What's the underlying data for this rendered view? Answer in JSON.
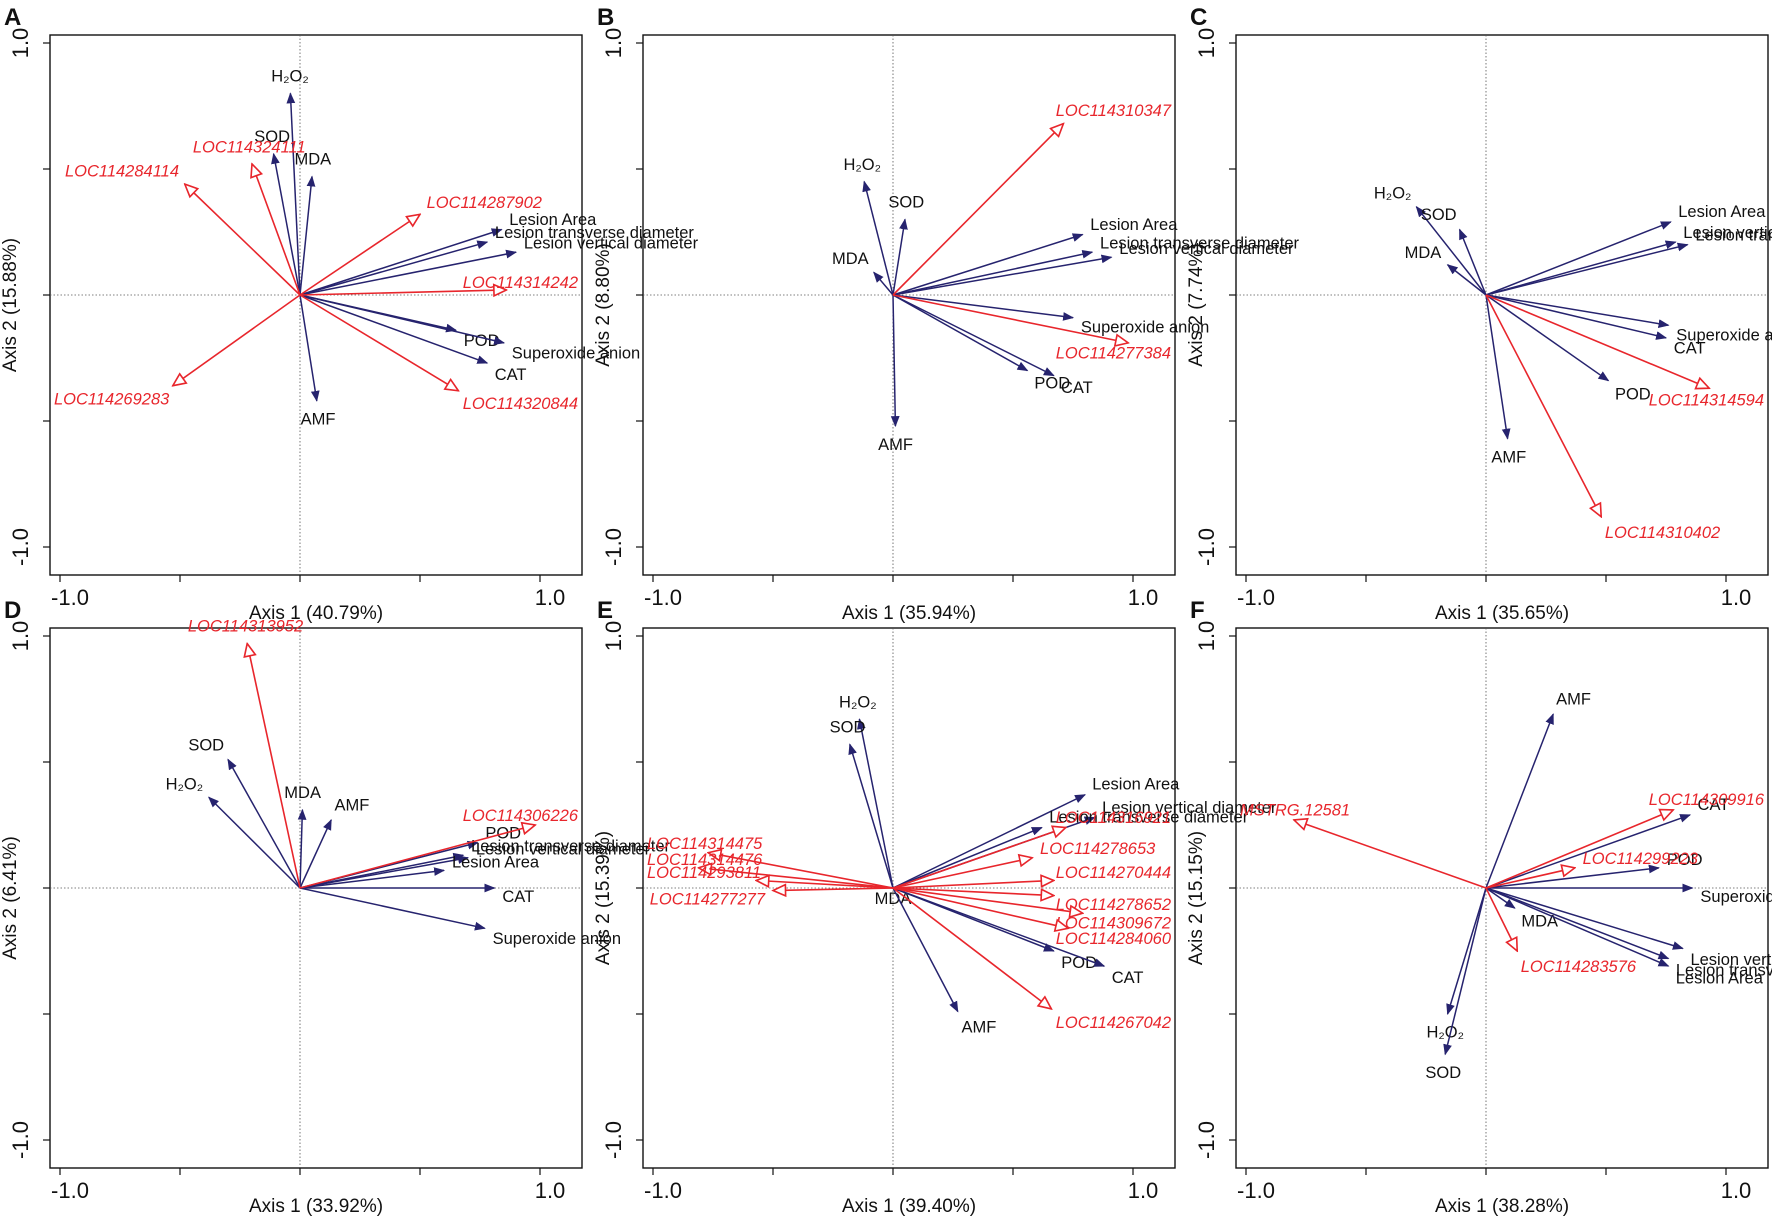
{
  "chart_data": [
    {
      "type": "scatter",
      "panel": "A",
      "xlabel": "Axis 1 (40.79%)",
      "ylabel": "Axis 2 (15.88%)",
      "xlim": [
        -1.0,
        1.0
      ],
      "ylim": [
        -1.0,
        1.0
      ],
      "x_tick_labels": [
        "-1.0",
        "1.0"
      ],
      "y_tick_labels": [
        "1.0",
        "-1.0"
      ],
      "variables": [
        {
          "name": "H₂O₂",
          "x": -0.04,
          "y": 0.8
        },
        {
          "name": "SOD",
          "x": -0.11,
          "y": 0.56
        },
        {
          "name": "MDA",
          "x": 0.05,
          "y": 0.47
        },
        {
          "name": "Lesion Area",
          "x": 0.84,
          "y": 0.26
        },
        {
          "name": "Lesion transverse diameter",
          "x": 0.78,
          "y": 0.21
        },
        {
          "name": "Lesion vertical diameter",
          "x": 0.9,
          "y": 0.17
        },
        {
          "name": "POD",
          "x": 0.65,
          "y": -0.14
        },
        {
          "name": "Superoxide anion",
          "x": 0.85,
          "y": -0.19
        },
        {
          "name": "CAT",
          "x": 0.78,
          "y": -0.27
        },
        {
          "name": "AMF",
          "x": 0.07,
          "y": -0.42
        }
      ],
      "genes": [
        {
          "name": "LOC114324111",
          "x": -0.2,
          "y": 0.52
        },
        {
          "name": "LOC114284114",
          "x": -0.48,
          "y": 0.44
        },
        {
          "name": "LOC114287902",
          "x": 0.5,
          "y": 0.32
        },
        {
          "name": "LOC114314242",
          "x": 0.86,
          "y": 0.02
        },
        {
          "name": "LOC114269283",
          "x": -0.53,
          "y": -0.36
        },
        {
          "name": "LOC114320844",
          "x": 0.66,
          "y": -0.38
        }
      ]
    },
    {
      "type": "scatter",
      "panel": "B",
      "xlabel": "Axis 1 (35.94%)",
      "ylabel": "Axis 2 (8.80%)",
      "xlim": [
        -1.0,
        1.0
      ],
      "ylim": [
        -1.0,
        1.0
      ],
      "x_tick_labels": [
        "-1.0",
        "1.0"
      ],
      "y_tick_labels": [
        "1.0",
        "-1.0"
      ],
      "variables": [
        {
          "name": "H₂O₂",
          "x": -0.12,
          "y": 0.45
        },
        {
          "name": "SOD",
          "x": 0.05,
          "y": 0.3
        },
        {
          "name": "MDA",
          "x": -0.08,
          "y": 0.09
        },
        {
          "name": "Lesion Area",
          "x": 0.79,
          "y": 0.24
        },
        {
          "name": "Lesion transverse diameter",
          "x": 0.83,
          "y": 0.17
        },
        {
          "name": "Lesion vertical diameter",
          "x": 0.91,
          "y": 0.15
        },
        {
          "name": "Superoxide anion",
          "x": 0.75,
          "y": -0.09
        },
        {
          "name": "POD",
          "x": 0.56,
          "y": -0.3
        },
        {
          "name": "CAT",
          "x": 0.67,
          "y": -0.32
        },
        {
          "name": "AMF",
          "x": 0.01,
          "y": -0.52
        }
      ],
      "genes": [
        {
          "name": "LOC114310347",
          "x": 0.71,
          "y": 0.68
        },
        {
          "name": "LOC114277384",
          "x": 0.98,
          "y": -0.19
        }
      ]
    },
    {
      "type": "scatter",
      "panel": "C",
      "xlabel": "Axis 1 (35.65%)",
      "ylabel": "Axis 2 (7.74%)",
      "xlim": [
        -1.0,
        1.0
      ],
      "ylim": [
        -1.0,
        1.0
      ],
      "x_tick_labels": [
        "-1.0",
        "1.0"
      ],
      "y_tick_labels": [
        "1.0",
        "-1.0"
      ],
      "variables": [
        {
          "name": "H₂O₂",
          "x": -0.29,
          "y": 0.35
        },
        {
          "name": "SOD",
          "x": -0.11,
          "y": 0.26
        },
        {
          "name": "MDA",
          "x": -0.16,
          "y": 0.12
        },
        {
          "name": "Lesion Area",
          "x": 0.77,
          "y": 0.29
        },
        {
          "name": "Lesion vertical diameter",
          "x": 0.79,
          "y": 0.21
        },
        {
          "name": "Lesion transverse diameter",
          "x": 0.84,
          "y": 0.2
        },
        {
          "name": "Superoxide anion",
          "x": 0.76,
          "y": -0.12
        },
        {
          "name": "CAT",
          "x": 0.75,
          "y": -0.17
        },
        {
          "name": "POD",
          "x": 0.51,
          "y": -0.34
        },
        {
          "name": "AMF",
          "x": 0.09,
          "y": -0.57
        }
      ],
      "genes": [
        {
          "name": "LOC114314594",
          "x": 0.93,
          "y": -0.37
        },
        {
          "name": "LOC114310402",
          "x": 0.48,
          "y": -0.88
        }
      ]
    },
    {
      "type": "scatter",
      "panel": "D",
      "xlabel": "Axis 1 (33.92%)",
      "ylabel": "Axis 2 (6.41%)",
      "xlim": [
        -1.0,
        1.0
      ],
      "ylim": [
        -1.0,
        1.0
      ],
      "x_tick_labels": [
        "-1.0",
        "1.0"
      ],
      "y_tick_labels": [
        "1.0",
        "-1.0"
      ],
      "variables": [
        {
          "name": "SOD",
          "x": -0.3,
          "y": 0.51
        },
        {
          "name": "H₂O₂",
          "x": -0.38,
          "y": 0.36
        },
        {
          "name": "MDA",
          "x": 0.01,
          "y": 0.31
        },
        {
          "name": "AMF",
          "x": 0.13,
          "y": 0.27
        },
        {
          "name": "POD",
          "x": 0.74,
          "y": 0.18
        },
        {
          "name": "Lesion transverse diameter",
          "x": 0.68,
          "y": 0.13
        },
        {
          "name": "Lesion vertical diameter",
          "x": 0.7,
          "y": 0.12
        },
        {
          "name": "Lesion Area",
          "x": 0.6,
          "y": 0.07
        },
        {
          "name": "CAT",
          "x": 0.81,
          "y": 0.0
        },
        {
          "name": "Superoxide anion",
          "x": 0.77,
          "y": -0.16
        }
      ],
      "genes": [
        {
          "name": "LOC114313952",
          "x": -0.22,
          "y": 0.97
        },
        {
          "name": "LOC114306226",
          "x": 0.98,
          "y": 0.25
        }
      ]
    },
    {
      "type": "scatter",
      "panel": "E",
      "xlabel": "Axis 1 (39.40%)",
      "ylabel": "Axis 2 (15.39%)",
      "xlim": [
        -1.0,
        1.0
      ],
      "ylim": [
        -1.0,
        1.0
      ],
      "x_tick_labels": [
        "-1.0",
        "1.0"
      ],
      "y_tick_labels": [
        "1.0",
        "-1.0"
      ],
      "variables": [
        {
          "name": "H₂O₂",
          "x": -0.14,
          "y": 0.67
        },
        {
          "name": "SOD",
          "x": -0.18,
          "y": 0.57
        },
        {
          "name": "MDA",
          "x": 0.0,
          "y": 0.0
        },
        {
          "name": "Lesion Area",
          "x": 0.8,
          "y": 0.37
        },
        {
          "name": "Lesion vertical diameter",
          "x": 0.84,
          "y": 0.28
        },
        {
          "name": "Lesion transverse diameter",
          "x": 0.62,
          "y": 0.24
        },
        {
          "name": "POD",
          "x": 0.67,
          "y": -0.25
        },
        {
          "name": "CAT",
          "x": 0.88,
          "y": -0.31
        },
        {
          "name": "AMF",
          "x": 0.27,
          "y": -0.49
        }
      ],
      "genes": [
        {
          "name": "LOC114316921",
          "x": 0.72,
          "y": 0.24
        },
        {
          "name": "LOC114278653",
          "x": 0.58,
          "y": 0.12
        },
        {
          "name": "LOC114270444",
          "x": 0.67,
          "y": 0.03
        },
        {
          "name": "LOC114278652",
          "x": 0.67,
          "y": -0.03
        },
        {
          "name": "LOC114309672",
          "x": 0.79,
          "y": -0.1
        },
        {
          "name": "LOC114284060",
          "x": 0.73,
          "y": -0.16
        },
        {
          "name": "LOC114267042",
          "x": 0.66,
          "y": -0.48
        },
        {
          "name": "LOC114314475",
          "x": -0.77,
          "y": 0.14
        },
        {
          "name": "LOC114314476",
          "x": -0.81,
          "y": 0.08
        },
        {
          "name": "LOC114293811",
          "x": -0.57,
          "y": 0.03
        },
        {
          "name": "LOC114277277",
          "x": -0.5,
          "y": -0.01
        }
      ]
    },
    {
      "type": "scatter",
      "panel": "F",
      "xlabel": "Axis 1 (38.28%)",
      "ylabel": "Axis 2 (15.15%)",
      "xlim": [
        -1.0,
        1.0
      ],
      "ylim": [
        -1.0,
        1.0
      ],
      "x_tick_labels": [
        "-1.0",
        "1.0"
      ],
      "y_tick_labels": [
        "1.0",
        "-1.0"
      ],
      "variables": [
        {
          "name": "AMF",
          "x": 0.28,
          "y": 0.69
        },
        {
          "name": "CAT",
          "x": 0.85,
          "y": 0.29
        },
        {
          "name": "POD",
          "x": 0.72,
          "y": 0.08
        },
        {
          "name": "Superoxide anion",
          "x": 0.86,
          "y": 0.0
        },
        {
          "name": "MDA",
          "x": 0.12,
          "y": -0.08
        },
        {
          "name": "Lesion vertical diameter",
          "x": 0.82,
          "y": -0.24
        },
        {
          "name": "Lesion transverse diameter",
          "x": 0.76,
          "y": -0.28
        },
        {
          "name": "Lesion Area",
          "x": 0.76,
          "y": -0.31
        },
        {
          "name": "H₂O₂",
          "x": -0.16,
          "y": -0.5
        },
        {
          "name": "SOD",
          "x": -0.17,
          "y": -0.66
        }
      ],
      "genes": [
        {
          "name": "LOC114309916",
          "x": 0.78,
          "y": 0.31
        },
        {
          "name": "LOC114299223",
          "x": 0.37,
          "y": 0.08
        },
        {
          "name": "MSTRG.12581",
          "x": -0.8,
          "y": 0.27
        },
        {
          "name": "LOC114283576",
          "x": 0.13,
          "y": -0.25
        }
      ]
    }
  ],
  "colors": {
    "variable_arrow": "#26236e",
    "gene_arrow": "#e8262c",
    "axis": "#111111",
    "crosshair": "#555555"
  }
}
